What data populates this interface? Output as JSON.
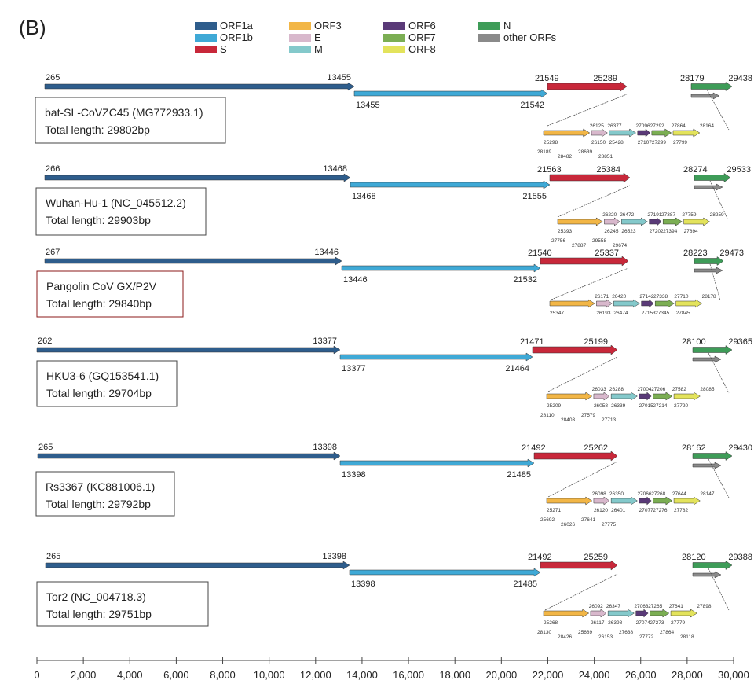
{
  "panel_label": "(B)",
  "colors": {
    "ORF1a": "#2E5D8C",
    "ORF1b": "#3FA9D6",
    "S": "#C8283A",
    "ORF3": "#F2B646",
    "E": "#D8B8CC",
    "M": "#84C9CB",
    "ORF6": "#5A3A78",
    "ORF7": "#7BAE53",
    "ORF8": "#E3E35C",
    "N": "#3E9C58",
    "other": "#8A8A8A"
  },
  "legend": [
    {
      "key": "ORF1a",
      "label": "ORF1a"
    },
    {
      "key": "ORF1b",
      "label": "ORF1b"
    },
    {
      "key": "S",
      "label": "S"
    },
    {
      "key": "ORF3",
      "label": "ORF3"
    },
    {
      "key": "E",
      "label": "E"
    },
    {
      "key": "M",
      "label": "M"
    },
    {
      "key": "ORF6",
      "label": "ORF6"
    },
    {
      "key": "ORF7",
      "label": "ORF7"
    },
    {
      "key": "ORF8",
      "label": "ORF8"
    },
    {
      "key": "N",
      "label": "N"
    },
    {
      "key": "other",
      "label": "other ORFs"
    }
  ],
  "axis": {
    "min": 0,
    "max": 30000,
    "ticks": [
      0,
      2000,
      4000,
      6000,
      8000,
      10000,
      12000,
      14000,
      16000,
      18000,
      20000,
      22000,
      24000,
      26000,
      28000,
      30000
    ],
    "tick_labels": [
      "0",
      "2,000",
      "4,000",
      "6,000",
      "8,000",
      "10,000",
      "12,000",
      "14,000",
      "16,000",
      "18,000",
      "20,000",
      "22,000",
      "24,000",
      "26,000",
      "28,000",
      "30,000"
    ]
  },
  "genomes": [
    {
      "name": "bat-SL-CoVZC45 (MG772933.1)",
      "total": "Total length: 29802bp",
      "orf1a": [
        "265",
        "13455"
      ],
      "orf1b": [
        "13455",
        "21542"
      ],
      "s": [
        "21549",
        "25289"
      ],
      "n": [
        "28179",
        "29438"
      ],
      "tiny_labels": [
        "25298",
        "26125",
        "26150",
        "26377",
        "25428",
        "27096",
        "27107",
        "27292",
        "27299",
        "27864",
        "27799",
        "28164",
        "28189",
        "28482",
        "28639",
        "28851"
      ]
    },
    {
      "name": "Wuhan-Hu-1 (NC_045512.2)",
      "total": "Total length: 29903bp",
      "orf1a": [
        "266",
        "13468"
      ],
      "orf1b": [
        "13468",
        "21555"
      ],
      "s": [
        "21563",
        "25384"
      ],
      "n": [
        "28274",
        "29533"
      ],
      "tiny_labels": [
        "25393",
        "26220",
        "26245",
        "26472",
        "26523",
        "27191",
        "27202",
        "27387",
        "27394",
        "27759",
        "27894",
        "28259",
        "27756",
        "27887",
        "29558",
        "29674"
      ]
    },
    {
      "name": "Pangolin CoV GX/P2V",
      "total": "Total length: 29840bp",
      "orf1a": [
        "267",
        "13446"
      ],
      "orf1b": [
        "13446",
        "21532"
      ],
      "s": [
        "21540",
        "25337"
      ],
      "n": [
        "28223",
        "29473"
      ],
      "tiny_labels": [
        "25347",
        "26171",
        "26193",
        "26420",
        "26474",
        "27142",
        "27153",
        "27338",
        "27345",
        "27710",
        "27845",
        "28178"
      ]
    },
    {
      "name": "HKU3-6 (GQ153541.1)",
      "total": "Total length: 29704bp",
      "orf1a": [
        "262",
        "13377"
      ],
      "orf1b": [
        "13377",
        "21464"
      ],
      "s": [
        "21471",
        "25199"
      ],
      "n": [
        "28100",
        "29365"
      ],
      "tiny_labels": [
        "25209",
        "26033",
        "26058",
        "26288",
        "26339",
        "27004",
        "27015",
        "27206",
        "27214",
        "27582",
        "27720",
        "28085",
        "28110",
        "28403",
        "27579",
        "27713"
      ]
    },
    {
      "name": "Rs3367 (KC881006.1)",
      "total": "Total length: 29792bp",
      "orf1a": [
        "265",
        "13398"
      ],
      "orf1b": [
        "13398",
        "21485"
      ],
      "s": [
        "21492",
        "25262"
      ],
      "n": [
        "28162",
        "29430"
      ],
      "tiny_labels": [
        "25271",
        "26098",
        "26120",
        "26350",
        "26401",
        "27066",
        "27077",
        "27268",
        "27276",
        "27644",
        "27782",
        "28147",
        "25692",
        "26026",
        "27641",
        "27775"
      ]
    },
    {
      "name": "Tor2 (NC_004718.3)",
      "total": "Total length: 29751bp",
      "orf1a": [
        "265",
        "13398"
      ],
      "orf1b": [
        "13398",
        "21485"
      ],
      "s": [
        "21492",
        "25259"
      ],
      "n": [
        "28120",
        "29388"
      ],
      "tiny_labels": [
        "25268",
        "26092",
        "26117",
        "26347",
        "26398",
        "27063",
        "27074",
        "27265",
        "27273",
        "27641",
        "27779",
        "27898",
        "28130",
        "28426",
        "25689",
        "26153",
        "27638",
        "27772",
        "27864",
        "28118"
      ]
    }
  ]
}
